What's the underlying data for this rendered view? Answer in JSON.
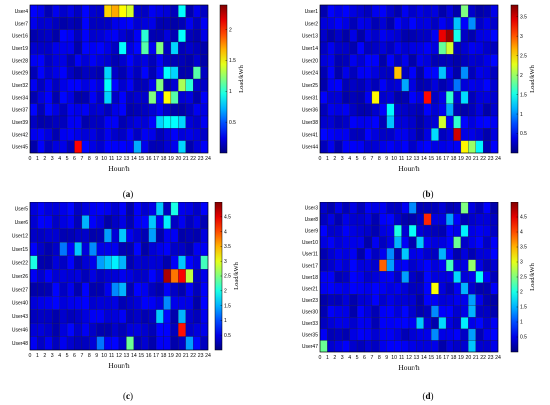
{
  "chart_data": [
    {
      "type": "heatmap",
      "panel_label": "a",
      "xlabel": "Hour/h",
      "ylabel": "",
      "colorbar_label": "Load/kWh",
      "x_ticks": [
        "0",
        "1",
        "2",
        "3",
        "4",
        "5",
        "6",
        "7",
        "8",
        "9",
        "10",
        "11",
        "12",
        "13",
        "14",
        "15",
        "16",
        "17",
        "18",
        "19",
        "20",
        "21",
        "22",
        "23",
        "24"
      ],
      "users": [
        "User4",
        "User7",
        "User16",
        "User19",
        "User28",
        "User29",
        "User32",
        "User34",
        "User37",
        "User39",
        "User42",
        "User45"
      ],
      "clim": [
        0,
        2.4
      ],
      "colorbar_ticks": [
        0.5,
        1,
        1.5,
        2
      ],
      "hot_cells": [
        {
          "row": 0,
          "col": 10,
          "value": 1.6
        },
        {
          "row": 0,
          "col": 11,
          "value": 1.7
        },
        {
          "row": 0,
          "col": 12,
          "value": 1.5
        },
        {
          "row": 0,
          "col": 13,
          "value": 1.4
        },
        {
          "row": 0,
          "col": 20,
          "value": 0.9
        },
        {
          "row": 2,
          "col": 15,
          "value": 1.0
        },
        {
          "row": 2,
          "col": 20,
          "value": 0.9
        },
        {
          "row": 3,
          "col": 12,
          "value": 0.9
        },
        {
          "row": 3,
          "col": 15,
          "value": 1.1
        },
        {
          "row": 3,
          "col": 17,
          "value": 1.2
        },
        {
          "row": 3,
          "col": 19,
          "value": 0.8
        },
        {
          "row": 5,
          "col": 10,
          "value": 0.8
        },
        {
          "row": 5,
          "col": 18,
          "value": 0.9
        },
        {
          "row": 5,
          "col": 19,
          "value": 0.8
        },
        {
          "row": 5,
          "col": 22,
          "value": 1.1
        },
        {
          "row": 6,
          "col": 10,
          "value": 0.9
        },
        {
          "row": 6,
          "col": 17,
          "value": 1.2
        },
        {
          "row": 6,
          "col": 20,
          "value": 1.3
        },
        {
          "row": 6,
          "col": 21,
          "value": 1.0
        },
        {
          "row": 7,
          "col": 10,
          "value": 0.8
        },
        {
          "row": 7,
          "col": 16,
          "value": 1.2
        },
        {
          "row": 7,
          "col": 18,
          "value": 1.5
        },
        {
          "row": 7,
          "col": 19,
          "value": 1.1
        },
        {
          "row": 9,
          "col": 17,
          "value": 0.8
        },
        {
          "row": 9,
          "col": 18,
          "value": 0.9
        },
        {
          "row": 9,
          "col": 19,
          "value": 0.9
        },
        {
          "row": 9,
          "col": 20,
          "value": 0.8
        },
        {
          "row": 11,
          "col": 6,
          "value": 2.1
        },
        {
          "row": 11,
          "col": 14,
          "value": 0.7
        },
        {
          "row": 11,
          "col": 20,
          "value": 0.8
        }
      ]
    },
    {
      "type": "heatmap",
      "panel_label": "b",
      "xlabel": "Hour/h",
      "ylabel": "",
      "colorbar_label": "Load/kWh",
      "x_ticks": [
        "0",
        "1",
        "2",
        "3",
        "4",
        "5",
        "6",
        "7",
        "8",
        "9",
        "10",
        "11",
        "12",
        "13",
        "14",
        "15",
        "16",
        "17",
        "18",
        "19",
        "20",
        "21",
        "22",
        "23",
        "24"
      ],
      "users": [
        "User1",
        "User2",
        "User13",
        "User14",
        "User20",
        "User24",
        "User25",
        "User31",
        "User36",
        "User38",
        "User41",
        "User44"
      ],
      "clim": [
        0,
        3.8
      ],
      "colorbar_ticks": [
        0.5,
        1,
        1.5,
        2,
        2.5,
        3,
        3.5
      ],
      "hot_cells": [
        {
          "row": 0,
          "col": 19,
          "value": 1.9
        },
        {
          "row": 1,
          "col": 18,
          "value": 1.2
        },
        {
          "row": 1,
          "col": 20,
          "value": 1.0
        },
        {
          "row": 2,
          "col": 16,
          "value": 3.4
        },
        {
          "row": 2,
          "col": 17,
          "value": 3.7
        },
        {
          "row": 2,
          "col": 18,
          "value": 1.5
        },
        {
          "row": 3,
          "col": 16,
          "value": 1.8
        },
        {
          "row": 3,
          "col": 17,
          "value": 2.2
        },
        {
          "row": 5,
          "col": 10,
          "value": 2.6
        },
        {
          "row": 5,
          "col": 16,
          "value": 1.2
        },
        {
          "row": 5,
          "col": 19,
          "value": 1.0
        },
        {
          "row": 6,
          "col": 11,
          "value": 1.1
        },
        {
          "row": 6,
          "col": 18,
          "value": 0.9
        },
        {
          "row": 7,
          "col": 7,
          "value": 2.4
        },
        {
          "row": 7,
          "col": 14,
          "value": 3.3
        },
        {
          "row": 7,
          "col": 17,
          "value": 1.6
        },
        {
          "row": 7,
          "col": 19,
          "value": 1.3
        },
        {
          "row": 8,
          "col": 9,
          "value": 1.4
        },
        {
          "row": 8,
          "col": 17,
          "value": 1.1
        },
        {
          "row": 9,
          "col": 9,
          "value": 1.2
        },
        {
          "row": 9,
          "col": 16,
          "value": 2.2
        },
        {
          "row": 9,
          "col": 18,
          "value": 1.6
        },
        {
          "row": 10,
          "col": 15,
          "value": 1.3
        },
        {
          "row": 10,
          "col": 18,
          "value": 3.5
        },
        {
          "row": 11,
          "col": 19,
          "value": 2.4
        },
        {
          "row": 11,
          "col": 20,
          "value": 2.0
        },
        {
          "row": 11,
          "col": 21,
          "value": 1.4
        }
      ]
    },
    {
      "type": "heatmap",
      "panel_label": "c",
      "xlabel": "Hour/h",
      "ylabel": "",
      "colorbar_label": "Load/kWh",
      "x_ticks": [
        "0",
        "1",
        "2",
        "3",
        "4",
        "5",
        "6",
        "7",
        "8",
        "9",
        "10",
        "11",
        "12",
        "13",
        "14",
        "15",
        "16",
        "17",
        "18",
        "19",
        "20",
        "21",
        "22",
        "23",
        "24"
      ],
      "users": [
        "User5",
        "User6",
        "User12",
        "User15",
        "User22",
        "User26",
        "User27",
        "User40",
        "User43",
        "User46",
        "User48"
      ],
      "clim": [
        0,
        5
      ],
      "colorbar_ticks": [
        0.5,
        1,
        1.5,
        2,
        2.5,
        3,
        3.5,
        4,
        4.5
      ],
      "hot_cells": [
        {
          "row": 0,
          "col": 17,
          "value": 1.6
        },
        {
          "row": 0,
          "col": 19,
          "value": 2.0
        },
        {
          "row": 1,
          "col": 7,
          "value": 1.5
        },
        {
          "row": 1,
          "col": 16,
          "value": 1.6
        },
        {
          "row": 1,
          "col": 18,
          "value": 1.8
        },
        {
          "row": 2,
          "col": 10,
          "value": 1.4
        },
        {
          "row": 2,
          "col": 12,
          "value": 1.6
        },
        {
          "row": 2,
          "col": 16,
          "value": 1.4
        },
        {
          "row": 3,
          "col": 4,
          "value": 1.2
        },
        {
          "row": 3,
          "col": 6,
          "value": 1.6
        },
        {
          "row": 3,
          "col": 8,
          "value": 1.3
        },
        {
          "row": 4,
          "col": 0,
          "value": 2.0
        },
        {
          "row": 4,
          "col": 9,
          "value": 1.4
        },
        {
          "row": 4,
          "col": 10,
          "value": 1.6
        },
        {
          "row": 4,
          "col": 11,
          "value": 1.8
        },
        {
          "row": 4,
          "col": 12,
          "value": 1.5
        },
        {
          "row": 4,
          "col": 20,
          "value": 1.6
        },
        {
          "row": 4,
          "col": 23,
          "value": 2.2
        },
        {
          "row": 5,
          "col": 18,
          "value": 4.8
        },
        {
          "row": 5,
          "col": 19,
          "value": 3.8
        },
        {
          "row": 5,
          "col": 20,
          "value": 4.4
        },
        {
          "row": 5,
          "col": 21,
          "value": 2.8
        },
        {
          "row": 6,
          "col": 11,
          "value": 1.3
        },
        {
          "row": 6,
          "col": 12,
          "value": 1.5
        },
        {
          "row": 7,
          "col": 18,
          "value": 1.3
        },
        {
          "row": 8,
          "col": 17,
          "value": 1.6
        },
        {
          "row": 8,
          "col": 20,
          "value": 1.5
        },
        {
          "row": 9,
          "col": 20,
          "value": 4.3
        },
        {
          "row": 10,
          "col": 9,
          "value": 1.2
        },
        {
          "row": 10,
          "col": 13,
          "value": 2.4
        },
        {
          "row": 10,
          "col": 21,
          "value": 1.4
        }
      ]
    },
    {
      "type": "heatmap",
      "panel_label": "d",
      "xlabel": "Hour/h",
      "ylabel": "",
      "colorbar_label": "Load/kWh",
      "x_ticks": [
        "0",
        "1",
        "2",
        "3",
        "4",
        "5",
        "6",
        "7",
        "8",
        "9",
        "10",
        "11",
        "12",
        "13",
        "14",
        "15",
        "16",
        "17",
        "18",
        "19",
        "20",
        "21",
        "22",
        "23",
        "24"
      ],
      "users": [
        "User3",
        "User8",
        "User9",
        "User10",
        "User11",
        "User17",
        "User18",
        "User21",
        "User23",
        "User30",
        "User33",
        "User35",
        "User47"
      ],
      "clim": [
        0,
        5
      ],
      "colorbar_ticks": [
        0.5,
        1,
        1.5,
        2,
        2.5,
        3,
        3.5,
        4,
        4.5
      ],
      "hot_cells": [
        {
          "row": 0,
          "col": 12,
          "value": 1.3
        },
        {
          "row": 0,
          "col": 19,
          "value": 2.5
        },
        {
          "row": 1,
          "col": 14,
          "value": 4.2
        },
        {
          "row": 1,
          "col": 17,
          "value": 1.4
        },
        {
          "row": 2,
          "col": 10,
          "value": 2.0
        },
        {
          "row": 2,
          "col": 12,
          "value": 1.9
        },
        {
          "row": 2,
          "col": 19,
          "value": 1.8
        },
        {
          "row": 3,
          "col": 10,
          "value": 1.5
        },
        {
          "row": 3,
          "col": 13,
          "value": 1.6
        },
        {
          "row": 3,
          "col": 18,
          "value": 2.4
        },
        {
          "row": 4,
          "col": 9,
          "value": 1.3
        },
        {
          "row": 4,
          "col": 11,
          "value": 1.6
        },
        {
          "row": 4,
          "col": 16,
          "value": 1.5
        },
        {
          "row": 5,
          "col": 8,
          "value": 3.9
        },
        {
          "row": 5,
          "col": 9,
          "value": 1.4
        },
        {
          "row": 5,
          "col": 17,
          "value": 2.2
        },
        {
          "row": 5,
          "col": 20,
          "value": 2.6
        },
        {
          "row": 6,
          "col": 11,
          "value": 1.4
        },
        {
          "row": 6,
          "col": 18,
          "value": 1.7
        },
        {
          "row": 6,
          "col": 21,
          "value": 1.9
        },
        {
          "row": 7,
          "col": 15,
          "value": 3.1
        },
        {
          "row": 7,
          "col": 19,
          "value": 1.5
        },
        {
          "row": 8,
          "col": 20,
          "value": 1.4
        },
        {
          "row": 9,
          "col": 15,
          "value": 1.3
        },
        {
          "row": 9,
          "col": 20,
          "value": 1.5
        },
        {
          "row": 10,
          "col": 13,
          "value": 1.6
        },
        {
          "row": 10,
          "col": 16,
          "value": 1.7
        },
        {
          "row": 10,
          "col": 19,
          "value": 1.8
        },
        {
          "row": 11,
          "col": 15,
          "value": 1.3
        },
        {
          "row": 11,
          "col": 20,
          "value": 1.4
        },
        {
          "row": 12,
          "col": 0,
          "value": 2.4
        },
        {
          "row": 12,
          "col": 20,
          "value": 1.6
        }
      ]
    }
  ]
}
